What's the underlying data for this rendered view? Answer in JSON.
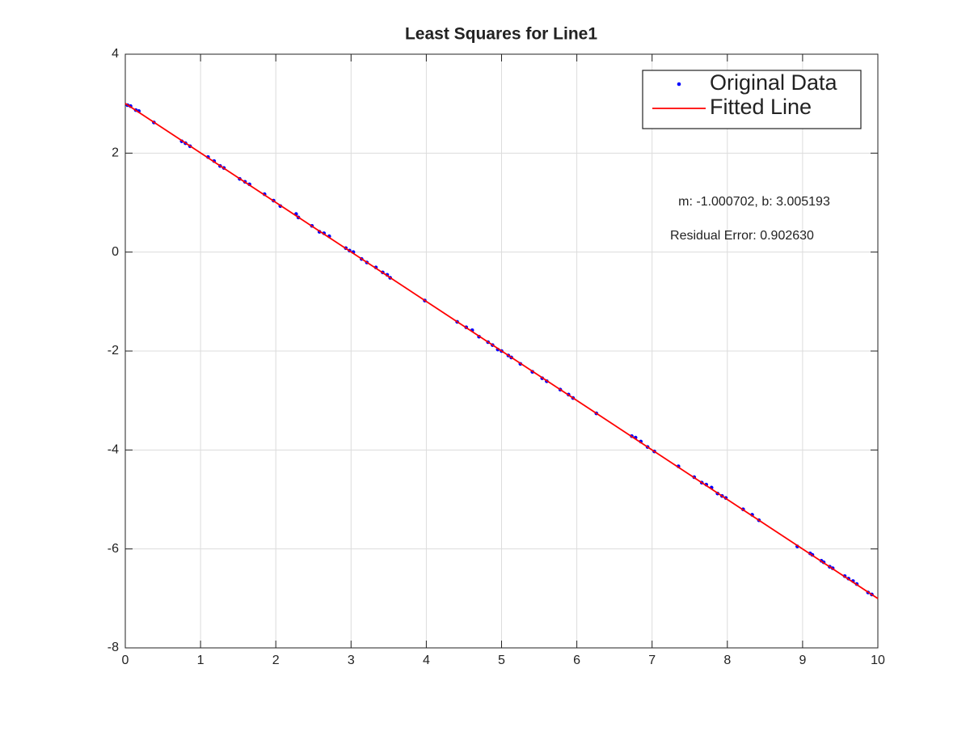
{
  "chart_data": {
    "type": "scatter",
    "title": "Least Squares for Line1",
    "xlim": [
      0,
      10
    ],
    "ylim": [
      -8,
      4
    ],
    "xticks": [
      0,
      1,
      2,
      3,
      4,
      5,
      6,
      7,
      8,
      9,
      10
    ],
    "yticks": [
      -8,
      -6,
      -4,
      -2,
      0,
      2,
      4
    ],
    "grid": true,
    "legend": "upper right",
    "annotations": [
      "m: -1.000702, b: 3.005193",
      "Residual Error: 0.902630"
    ],
    "series": [
      {
        "name": "Original Data",
        "color": "#0000ff",
        "mode": "markers",
        "x": [
          0.03,
          0.07,
          0.14,
          0.18,
          0.38,
          0.75,
          0.8,
          0.86,
          1.1,
          1.18,
          1.26,
          1.31,
          1.52,
          1.59,
          1.65,
          1.85,
          1.97,
          2.06,
          2.27,
          2.3,
          2.48,
          2.58,
          2.64,
          2.71,
          2.93,
          2.98,
          3.03,
          3.14,
          3.21,
          3.33,
          3.42,
          3.48,
          3.52,
          3.98,
          4.41,
          4.53,
          4.61,
          4.7,
          4.82,
          4.88,
          4.95,
          5.0,
          5.09,
          5.13,
          5.25,
          5.41,
          5.54,
          5.6,
          5.78,
          5.89,
          5.95,
          6.26,
          6.73,
          6.78,
          6.85,
          6.94,
          7.03,
          7.35,
          7.56,
          7.66,
          7.72,
          7.79,
          7.87,
          7.93,
          7.98,
          8.21,
          8.33,
          8.42,
          8.93,
          9.1,
          9.13,
          9.25,
          9.28,
          9.36,
          9.4,
          9.56,
          9.61,
          9.67,
          9.72,
          9.87,
          9.92
        ],
        "values": [
          2.97,
          2.95,
          2.87,
          2.85,
          2.62,
          2.24,
          2.2,
          2.14,
          1.92,
          1.84,
          1.74,
          1.7,
          1.48,
          1.42,
          1.37,
          1.17,
          1.04,
          0.93,
          0.77,
          0.7,
          0.53,
          0.41,
          0.38,
          0.32,
          0.08,
          0.03,
          0.0,
          -0.14,
          -0.21,
          -0.31,
          -0.41,
          -0.46,
          -0.52,
          -0.98,
          -1.41,
          -1.52,
          -1.58,
          -1.71,
          -1.82,
          -1.88,
          -1.97,
          -2.0,
          -2.09,
          -2.13,
          -2.26,
          -2.42,
          -2.55,
          -2.61,
          -2.78,
          -2.88,
          -2.95,
          -3.26,
          -3.72,
          -3.75,
          -3.83,
          -3.94,
          -4.03,
          -4.33,
          -4.55,
          -4.66,
          -4.7,
          -4.76,
          -4.88,
          -4.93,
          -4.97,
          -5.2,
          -5.31,
          -5.42,
          -5.95,
          -6.09,
          -6.12,
          -6.24,
          -6.27,
          -6.36,
          -6.39,
          -6.55,
          -6.6,
          -6.65,
          -6.71,
          -6.88,
          -6.92
        ]
      },
      {
        "name": "Fitted Line",
        "color": "#ff0000",
        "mode": "lines",
        "x": [
          0,
          10
        ],
        "values": [
          3.005193,
          -7.001827
        ]
      }
    ]
  }
}
